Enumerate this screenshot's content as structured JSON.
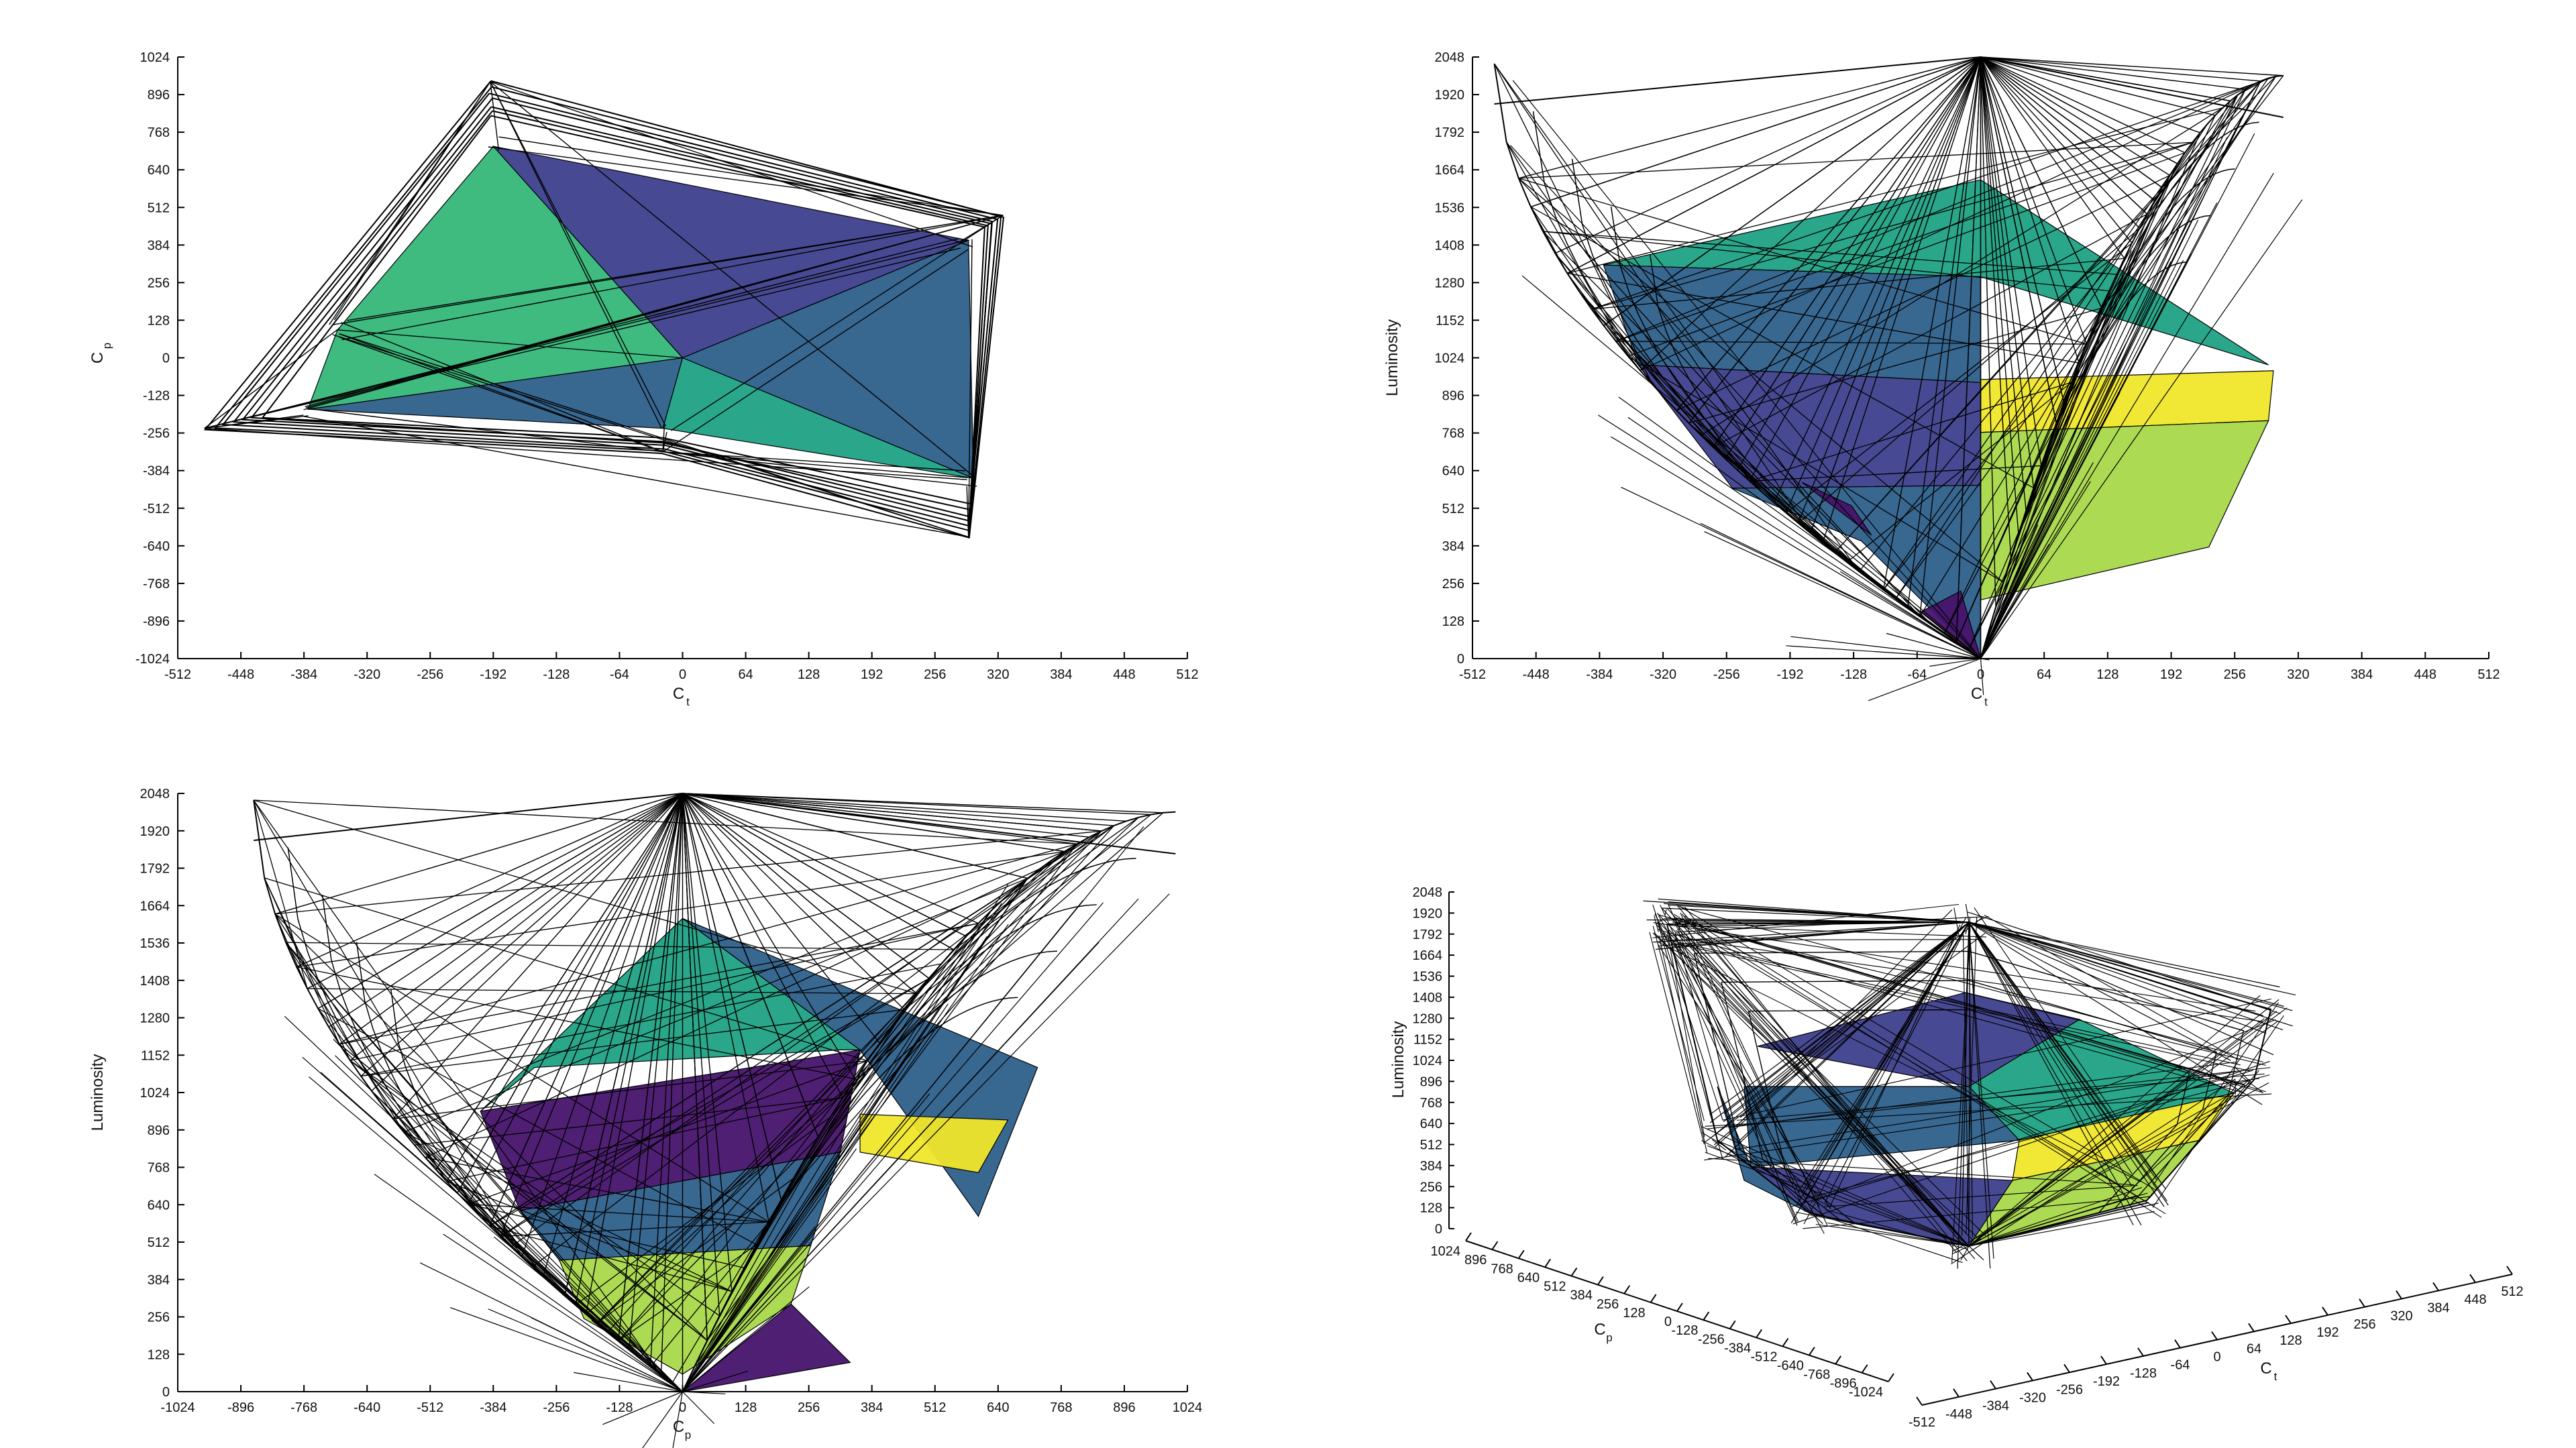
{
  "colors": {
    "dark_purple": "#46136b",
    "indigo": "#3d3f8c",
    "steel_blue": "#2d5f8a",
    "teal": "#1fa284",
    "green": "#35b779",
    "lime": "#a8d84a",
    "yellow": "#f0e62a",
    "wire": "#000000",
    "axis": "#000000"
  },
  "chart_data": [
    {
      "type": "surface",
      "view": "top (Ct vs Cp)",
      "xlabel": "C",
      "xlabel_sub": "t",
      "ylabel": "C",
      "ylabel_sub": "p",
      "xlim": [
        -512,
        512
      ],
      "ylim": [
        -1024,
        1024
      ],
      "x_ticks": [
        "-512",
        "-448",
        "-384",
        "-320",
        "-256",
        "-192",
        "-128",
        "-64",
        "0",
        "64",
        "128",
        "192",
        "256",
        "320",
        "384",
        "448",
        "512"
      ],
      "y_ticks": [
        "1024",
        "896",
        "768",
        "640",
        "512",
        "384",
        "256",
        "128",
        "0",
        "-128",
        "-256",
        "-384",
        "-512",
        "-640",
        "-768",
        "-896",
        "-1024"
      ],
      "gamut_outline": [
        [
          -192,
          720
        ],
        [
          290,
          400
        ],
        [
          295,
          -410
        ],
        [
          -20,
          -240
        ],
        [
          -380,
          -175
        ],
        [
          -350,
          95
        ]
      ],
      "wire_outline": [
        [
          -195,
          940
        ],
        [
          325,
          485
        ],
        [
          290,
          -610
        ],
        [
          -20,
          -320
        ],
        [
          -485,
          -240
        ]
      ]
    },
    {
      "type": "surface",
      "view": "side (Ct vs Luminosity)",
      "xlabel": "C",
      "xlabel_sub": "t",
      "ylabel": "Luminosity",
      "xlim": [
        -512,
        512
      ],
      "ylim": [
        0,
        2048
      ],
      "x_ticks": [
        "-512",
        "-448",
        "-384",
        "-320",
        "-256",
        "-192",
        "-128",
        "-64",
        "0",
        "64",
        "128",
        "192",
        "256",
        "320",
        "384",
        "448",
        "512"
      ],
      "y_ticks": [
        "2048",
        "1920",
        "1792",
        "1664",
        "1536",
        "1408",
        "1280",
        "1152",
        "1024",
        "896",
        "768",
        "640",
        "512",
        "384",
        "256",
        "128",
        "0"
      ],
      "bands": [
        {
          "color": "teal",
          "poly": [
            [
              -380,
              1340
            ],
            [
              0,
              1630
            ],
            [
              290,
              1000
            ],
            [
              0,
              1300
            ]
          ]
        },
        {
          "color": "steel_blue",
          "poly": [
            [
              -380,
              1340
            ],
            [
              0,
              1300
            ],
            [
              0,
              940
            ],
            [
              -345,
              1000
            ]
          ]
        },
        {
          "color": "indigo",
          "poly": [
            [
              -345,
              1000
            ],
            [
              0,
              940
            ],
            [
              0,
              590
            ],
            [
              -250,
              580
            ]
          ]
        },
        {
          "color": "yellow",
          "poly": [
            [
              0,
              950
            ],
            [
              295,
              980
            ],
            [
              290,
              810
            ],
            [
              0,
              770
            ]
          ]
        },
        {
          "color": "lime",
          "poly": [
            [
              0,
              770
            ],
            [
              290,
              810
            ],
            [
              230,
              380
            ],
            [
              0,
              200
            ]
          ]
        },
        {
          "color": "steel_blue",
          "poly": [
            [
              -250,
              580
            ],
            [
              0,
              590
            ],
            [
              0,
              0
            ],
            [
              -120,
              400
            ]
          ]
        }
      ]
    },
    {
      "type": "surface",
      "view": "side (Cp vs Luminosity)",
      "xlabel": "C",
      "xlabel_sub": "p",
      "ylabel": "Luminosity",
      "xlim": [
        -1024,
        1024
      ],
      "ylim": [
        0,
        2048
      ],
      "x_ticks": [
        "-1024",
        "-896",
        "-768",
        "-640",
        "-512",
        "-384",
        "-256",
        "-128",
        "0",
        "128",
        "256",
        "384",
        "512",
        "640",
        "768",
        "896",
        "1024"
      ],
      "y_ticks": [
        "2048",
        "1920",
        "1792",
        "1664",
        "1536",
        "1408",
        "1280",
        "1152",
        "1024",
        "896",
        "768",
        "640",
        "512",
        "384",
        "256",
        "128",
        "0"
      ],
      "bands": [
        {
          "color": "teal",
          "poly": [
            [
              -410,
              960
            ],
            [
              0,
              1620
            ],
            [
              360,
              1170
            ],
            [
              320,
              1170
            ],
            [
              -300,
              1110
            ]
          ]
        },
        {
          "color": "steel_blue",
          "poly": [
            [
              0,
              1620
            ],
            [
              720,
              1110
            ],
            [
              600,
              600
            ],
            [
              360,
              1170
            ]
          ]
        },
        {
          "color": "dark_purple",
          "poly": [
            [
              -410,
              960
            ],
            [
              360,
              1170
            ],
            [
              320,
              820
            ],
            [
              -330,
              620
            ]
          ]
        },
        {
          "color": "yellow",
          "poly": [
            [
              360,
              950
            ],
            [
              660,
              930
            ],
            [
              600,
              750
            ],
            [
              360,
              820
            ]
          ]
        },
        {
          "color": "steel_blue",
          "poly": [
            [
              -330,
              620
            ],
            [
              320,
              820
            ],
            [
              260,
              500
            ],
            [
              -250,
              450
            ]
          ]
        },
        {
          "color": "lime",
          "poly": [
            [
              -250,
              450
            ],
            [
              260,
              500
            ],
            [
              220,
              300
            ],
            [
              0,
              60
            ],
            [
              -200,
              250
            ]
          ]
        },
        {
          "color": "dark_purple",
          "poly": [
            [
              0,
              0
            ],
            [
              220,
              300
            ],
            [
              340,
              100
            ]
          ]
        }
      ]
    },
    {
      "type": "surface",
      "view": "3D (Ct, Cp, Luminosity)",
      "xlabel": "C",
      "xlabel_sub": "t",
      "ylabel": "C",
      "ylabel_sub": "p",
      "zlabel": "Luminosity",
      "xlim": [
        -512,
        512
      ],
      "ylim": [
        -1024,
        1024
      ],
      "zlim": [
        0,
        2048
      ],
      "x_ticks": [
        "-512",
        "-448",
        "-384",
        "-320",
        "-256",
        "-192",
        "-128",
        "-64",
        "0",
        "64",
        "128",
        "192",
        "256",
        "320",
        "384",
        "448",
        "512"
      ],
      "y_ticks": [
        "1024",
        "896",
        "768",
        "640",
        "512",
        "384",
        "256",
        "128",
        "0",
        "-128",
        "-256",
        "-384",
        "-512",
        "-640",
        "-768",
        "-896",
        "-1024"
      ],
      "z_ticks": [
        "2048",
        "1920",
        "1792",
        "1664",
        "1536",
        "1408",
        "1280",
        "1152",
        "1024",
        "896",
        "768",
        "640",
        "512",
        "384",
        "256",
        "128",
        "0"
      ]
    }
  ]
}
